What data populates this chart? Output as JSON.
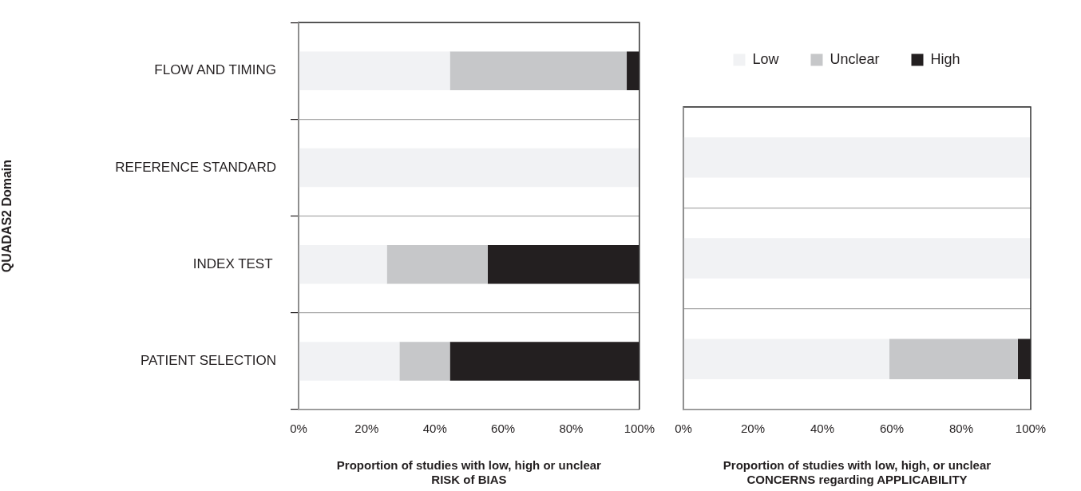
{
  "chart_data": [
    {
      "type": "bar",
      "orientation": "horizontal",
      "stacked": true,
      "ylabel": "QUADAS2 Domain",
      "xlabel": "Proportion of studies with low, high or unclear\nRISK of BIAS",
      "categories": [
        "FLOW AND TIMING",
        "REFERENCE STANDARD",
        "INDEX TEST ",
        "PATIENT SELECTION"
      ],
      "series": [
        {
          "color": "#f1f2f4",
          "values": [
            44.4,
            100,
            25.9,
            29.6
          ]
        },
        {
          "color": "#c6c7c9",
          "values": [
            51.9,
            0,
            29.6,
            14.8
          ]
        },
        {
          "color": "#231f20",
          "values": [
            3.7,
            0,
            44.4,
            55.6
          ]
        }
      ],
      "xlim": [
        0,
        100
      ],
      "xticks": [
        {
          "value": 0,
          "label": "0%"
        },
        {
          "value": 20,
          "label": "20%"
        },
        {
          "value": 40,
          "label": "40%"
        },
        {
          "value": 60,
          "label": "60%"
        },
        {
          "value": 80,
          "label": "80%"
        },
        {
          "value": 100,
          "label": "100%"
        }
      ],
      "grid": "y"
    },
    {
      "type": "bar",
      "orientation": "horizontal",
      "stacked": true,
      "xlabel": "Proportion of studies with low, high, or unclear\nCONCERNS regarding APPLICABILITY",
      "categories": [
        null,
        null,
        null
      ],
      "series": [
        {
          "name": "Low",
          "color": "#f1f2f4",
          "values": [
            100,
            100,
            59.3
          ]
        },
        {
          "name": "Unclear",
          "color": "#c6c7c9",
          "values": [
            0,
            0,
            37.0
          ]
        },
        {
          "name": "High",
          "color": "#231f20",
          "values": [
            0,
            0,
            3.7
          ]
        }
      ],
      "xlim": [
        0,
        100
      ],
      "xticks": [
        {
          "value": 0,
          "label": "0%"
        },
        {
          "value": 20,
          "label": "20%"
        },
        {
          "value": 40,
          "label": "40%"
        },
        {
          "value": 60,
          "label": "60%"
        },
        {
          "value": 80,
          "label": "80%"
        },
        {
          "value": 100,
          "label": "100%"
        }
      ],
      "grid": "y",
      "legend": "top",
      "tick_labels": "x"
    }
  ]
}
